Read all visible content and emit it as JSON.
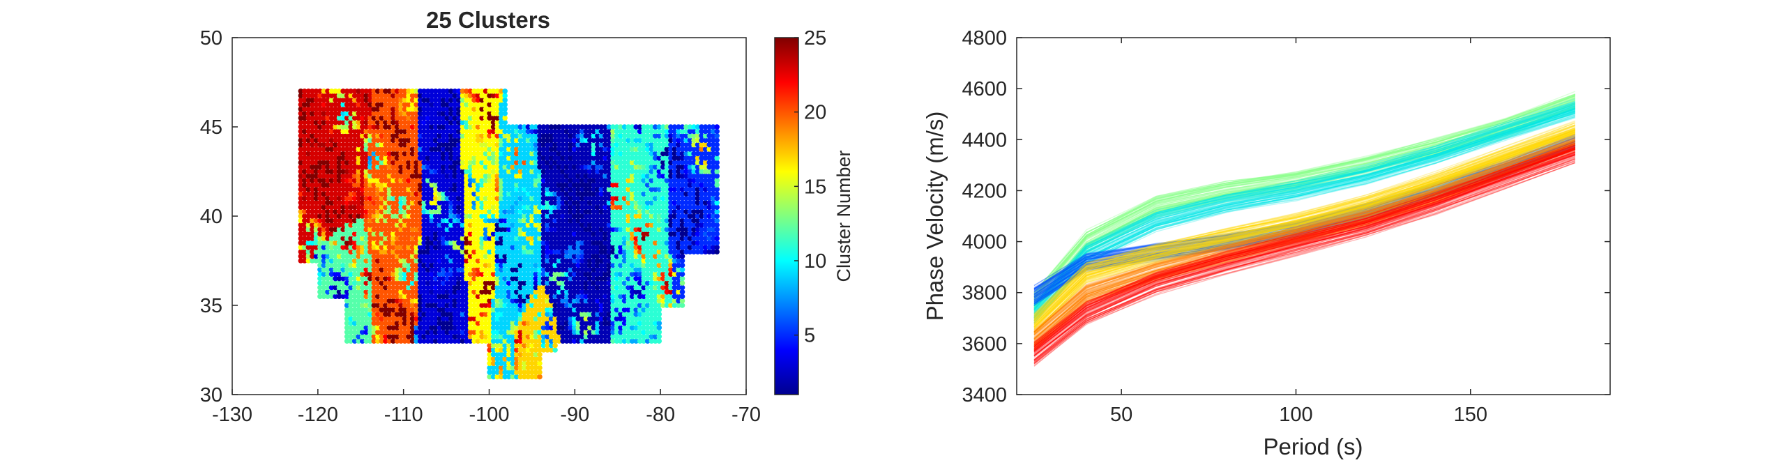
{
  "chart_data": [
    {
      "type": "scatter",
      "title": "25 Clusters",
      "xlabel": "",
      "ylabel": "",
      "xlim": [
        -130,
        -70
      ],
      "ylim": [
        30,
        50
      ],
      "xticks": [
        "-130",
        "-120",
        "-110",
        "-100",
        "-90",
        "-80",
        "-70"
      ],
      "yticks": [
        "30",
        "35",
        "40",
        "45",
        "50"
      ],
      "colorbar": {
        "label": "Cluster Number",
        "range": [
          1,
          25
        ],
        "ticks": [
          "5",
          "10",
          "15",
          "20",
          "25"
        ],
        "colormap": "jet",
        "colors": [
          "#00008f",
          "#0000ff",
          "#0080ff",
          "#00ffff",
          "#80ff80",
          "#ffff00",
          "#ff8000",
          "#ff0000",
          "#800000"
        ]
      },
      "grid": false,
      "note_region": {
        "lon_range": [
          -122,
          -73
        ],
        "lat_range": [
          31,
          47
        ],
        "zones": [
          {
            "lon": [
              -122,
              -115
            ],
            "lat": [
              38,
              47
            ],
            "cluster": 23
          },
          {
            "lon": [
              -120,
              -114
            ],
            "lat": [
              34,
              40
            ],
            "cluster": 12
          },
          {
            "lon": [
              -114,
              -108
            ],
            "lat": [
              35,
              45
            ],
            "cluster": 20
          },
          {
            "lon": [
              -108,
              -103
            ],
            "lat": [
              33,
              46
            ],
            "cluster": 3
          },
          {
            "lon": [
              -103,
              -99
            ],
            "lat": [
              36,
              47
            ],
            "cluster": 16
          },
          {
            "lon": [
              -99,
              -94
            ],
            "lat": [
              33,
              45
            ],
            "cluster": 9
          },
          {
            "lon": [
              -97,
              -92
            ],
            "lat": [
              31,
              36
            ],
            "cluster": 17
          },
          {
            "lon": [
              -94,
              -86
            ],
            "lat": [
              33,
              46
            ],
            "cluster": 2
          },
          {
            "lon": [
              -86,
              -79
            ],
            "lat": [
              34,
              45
            ],
            "cluster": 11
          },
          {
            "lon": [
              -79,
              -73
            ],
            "lat": [
              36,
              45
            ],
            "cluster": 5
          }
        ]
      }
    },
    {
      "type": "line",
      "title": "",
      "xlabel": "Period (s)",
      "ylabel": "Phase Velocity (m/s)",
      "xlim": [
        20,
        190
      ],
      "ylim": [
        3400,
        4800
      ],
      "xticks": [
        "50",
        "100",
        "150"
      ],
      "yticks": [
        "3400",
        "3600",
        "3800",
        "4000",
        "4200",
        "4400",
        "4600",
        "4800"
      ],
      "grid": false,
      "bundles": [
        {
          "color": "#ff0000",
          "x": [
            25,
            40,
            60,
            80,
            100,
            120,
            140,
            160,
            180
          ],
          "y": [
            3560,
            3720,
            3840,
            3920,
            3990,
            4060,
            4150,
            4250,
            4350
          ],
          "spread": 45
        },
        {
          "color": "#ff8000",
          "x": [
            25,
            40,
            60,
            80,
            100,
            120,
            140,
            160,
            180
          ],
          "y": [
            3610,
            3790,
            3880,
            3950,
            4020,
            4090,
            4180,
            4280,
            4380
          ],
          "spread": 40
        },
        {
          "color": "#ffd700",
          "x": [
            25,
            40,
            60,
            80,
            100,
            120,
            140,
            160,
            180
          ],
          "y": [
            3680,
            3880,
            3960,
            4020,
            4080,
            4150,
            4240,
            4340,
            4440
          ],
          "spread": 40
        },
        {
          "color": "#00e5e5",
          "x": [
            25,
            40,
            60,
            80,
            100,
            120,
            140,
            160,
            180
          ],
          "y": [
            3720,
            3950,
            4080,
            4150,
            4200,
            4260,
            4340,
            4430,
            4520
          ],
          "spread": 40
        },
        {
          "color": "#80ff80",
          "x": [
            25,
            40,
            60,
            80,
            100,
            120,
            140,
            160,
            180
          ],
          "y": [
            3760,
            4000,
            4140,
            4200,
            4240,
            4300,
            4370,
            4450,
            4550
          ],
          "spread": 45
        },
        {
          "color": "#0050ff",
          "x": [
            25,
            40,
            60,
            80,
            100,
            120,
            140,
            160,
            180
          ],
          "y": [
            3790,
            3920,
            3960,
            4000,
            4050,
            4120,
            4200,
            4290,
            4390
          ],
          "spread": 35
        }
      ]
    }
  ]
}
